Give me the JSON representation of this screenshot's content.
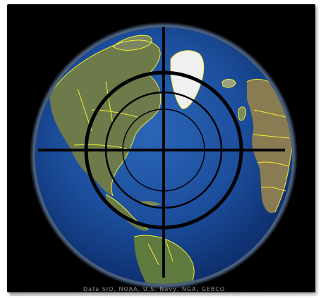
{
  "image": {
    "subject": "globe-with-crosshair",
    "colors": {
      "space": "#000000",
      "ocean": "#1c4e9c",
      "ocean_deep": "#0b2d6b",
      "land": "#6e7d4d",
      "ice": "#f2f2f2",
      "borders": "#f5f033",
      "crosshair": "#000000"
    },
    "footer_text": "Data SIO, NOAA, U.S. Navy, NGA, GEBCO"
  }
}
